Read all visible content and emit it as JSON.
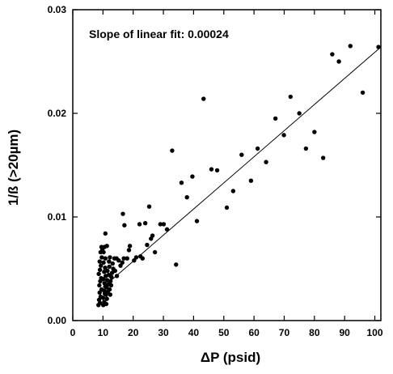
{
  "chart_data": {
    "type": "scatter",
    "title": "",
    "xlabel": "ΔP (psid)",
    "ylabel": "1/ß (>20µm)",
    "xlim": [
      0,
      102
    ],
    "ylim": [
      0,
      0.03
    ],
    "xticks": [
      0,
      10,
      20,
      30,
      40,
      50,
      60,
      70,
      80,
      90,
      100
    ],
    "xtick_labels": [
      "0",
      "10",
      "20",
      "30",
      "40",
      "50",
      "60",
      "70",
      "80",
      "90",
      "100"
    ],
    "yticks": [
      0,
      0.01,
      0.02,
      0.03
    ],
    "ytick_labels": [
      "0.00",
      "0.01",
      "0.02",
      "0.03"
    ],
    "grid": false,
    "legend": "none",
    "annotation": "Slope of linear fit: 0.00024",
    "fit_line": {
      "start": [
        10,
        0.0032
      ],
      "end": [
        102,
        0.0264
      ]
    },
    "points": [
      [
        8.5,
        0.0015
      ],
      [
        9.0,
        0.0017
      ],
      [
        8.7,
        0.002
      ],
      [
        9.2,
        0.0023
      ],
      [
        8.9,
        0.0027
      ],
      [
        9.5,
        0.003
      ],
      [
        8.8,
        0.0034
      ],
      [
        9.1,
        0.0038
      ],
      [
        9.4,
        0.0041
      ],
      [
        8.6,
        0.0045
      ],
      [
        9.0,
        0.0049
      ],
      [
        9.3,
        0.0053
      ],
      [
        8.9,
        0.0057
      ],
      [
        9.6,
        0.0061
      ],
      [
        10.1,
        0.0015
      ],
      [
        10.4,
        0.0018
      ],
      [
        10.0,
        0.0022
      ],
      [
        10.6,
        0.0026
      ],
      [
        10.3,
        0.0029
      ],
      [
        10.8,
        0.0033
      ],
      [
        10.5,
        0.0036
      ],
      [
        10.1,
        0.004
      ],
      [
        10.9,
        0.0043
      ],
      [
        10.4,
        0.0047
      ],
      [
        10.7,
        0.0051
      ],
      [
        10.2,
        0.0056
      ],
      [
        10.8,
        0.006
      ],
      [
        11.1,
        0.0016
      ],
      [
        11.3,
        0.0021
      ],
      [
        11.0,
        0.0025
      ],
      [
        11.6,
        0.0028
      ],
      [
        11.2,
        0.0032
      ],
      [
        11.8,
        0.0035
      ],
      [
        11.4,
        0.0039
      ],
      [
        11.9,
        0.0044
      ],
      [
        11.5,
        0.0048
      ],
      [
        12.1,
        0.0052
      ],
      [
        12.4,
        0.0025
      ],
      [
        12.2,
        0.003
      ],
      [
        12.7,
        0.0034
      ],
      [
        12.5,
        0.0038
      ],
      [
        12.8,
        0.0042
      ],
      [
        13.0,
        0.0046
      ],
      [
        13.4,
        0.005
      ],
      [
        9.2,
        0.0066
      ],
      [
        9.5,
        0.0071
      ],
      [
        9.8,
        0.0069
      ],
      [
        10.2,
        0.0066
      ],
      [
        10.5,
        0.0071
      ],
      [
        11.3,
        0.0072
      ],
      [
        10.8,
        0.0084
      ],
      [
        12.0,
        0.0057
      ],
      [
        12.3,
        0.0061
      ],
      [
        13.2,
        0.0055
      ],
      [
        13.8,
        0.006
      ],
      [
        14.5,
        0.006
      ],
      [
        15.2,
        0.0058
      ],
      [
        15.8,
        0.0053
      ],
      [
        16.4,
        0.0056
      ],
      [
        16.9,
        0.006
      ],
      [
        14.0,
        0.0048
      ],
      [
        14.6,
        0.0043
      ],
      [
        16.6,
        0.0103
      ],
      [
        17.1,
        0.0092
      ],
      [
        18.0,
        0.006
      ],
      [
        18.6,
        0.0068
      ],
      [
        18.9,
        0.0072
      ],
      [
        20.3,
        0.0058
      ],
      [
        21.0,
        0.0061
      ],
      [
        22.1,
        0.0093
      ],
      [
        22.4,
        0.0062
      ],
      [
        23.1,
        0.006
      ],
      [
        24.0,
        0.0094
      ],
      [
        24.6,
        0.0073
      ],
      [
        25.3,
        0.011
      ],
      [
        25.9,
        0.0079
      ],
      [
        26.4,
        0.0082
      ],
      [
        27.2,
        0.0066
      ],
      [
        29.0,
        0.0093
      ],
      [
        30.1,
        0.0093
      ],
      [
        31.2,
        0.0088
      ],
      [
        32.9,
        0.0164
      ],
      [
        34.2,
        0.0054
      ],
      [
        36.0,
        0.0133
      ],
      [
        37.8,
        0.0119
      ],
      [
        39.6,
        0.0139
      ],
      [
        41.1,
        0.0096
      ],
      [
        43.3,
        0.0214
      ],
      [
        45.9,
        0.0146
      ],
      [
        47.8,
        0.0145
      ],
      [
        51.0,
        0.0109
      ],
      [
        53.1,
        0.0125
      ],
      [
        55.9,
        0.016
      ],
      [
        59.0,
        0.0135
      ],
      [
        61.2,
        0.0166
      ],
      [
        64.0,
        0.0153
      ],
      [
        67.1,
        0.0195
      ],
      [
        69.9,
        0.0179
      ],
      [
        72.1,
        0.0216
      ],
      [
        75.0,
        0.02
      ],
      [
        77.2,
        0.0166
      ],
      [
        80.0,
        0.0182
      ],
      [
        82.9,
        0.0157
      ],
      [
        85.9,
        0.0257
      ],
      [
        88.1,
        0.025
      ],
      [
        91.9,
        0.0265
      ],
      [
        96.0,
        0.022
      ],
      [
        101.2,
        0.0264
      ]
    ]
  }
}
